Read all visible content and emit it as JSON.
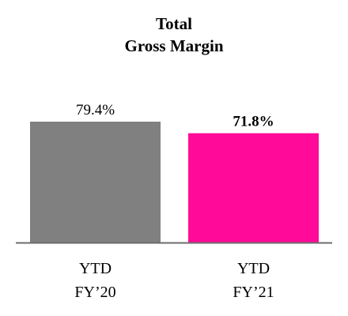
{
  "chart_data": {
    "type": "bar",
    "title_lines": [
      "Total",
      "Gross Margin"
    ],
    "categories": [
      {
        "lines": [
          "YTD",
          "FY’20"
        ]
      },
      {
        "lines": [
          "YTD",
          "FY’21"
        ]
      }
    ],
    "values": [
      79.4,
      71.8
    ],
    "value_labels": [
      "79.4%",
      "71.8%"
    ],
    "value_label_bold": [
      false,
      true
    ],
    "colors": [
      "#808080",
      "#ff0a99"
    ],
    "axis_color": "#6d6d6d",
    "ylim": [
      0,
      100
    ],
    "grid": false,
    "legend": false
  }
}
